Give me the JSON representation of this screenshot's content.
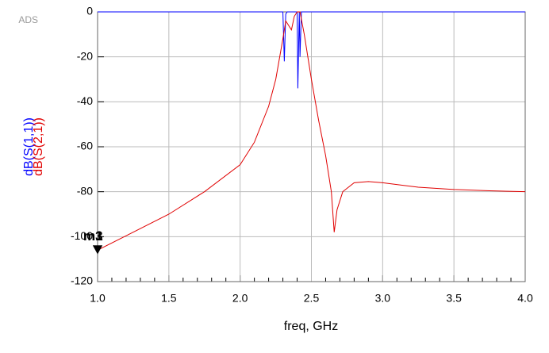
{
  "chart_data": {
    "type": "line",
    "logo": "ADS",
    "xlabel": "freq, GHz",
    "series": [
      {
        "name": "dB(S(1,1))",
        "color": "#0000ff",
        "x": [
          1.0,
          2.3,
          2.31,
          2.32,
          2.33,
          2.4,
          2.405,
          2.415,
          2.42,
          2.43,
          4.0
        ],
        "values": [
          0,
          0,
          -22,
          -1,
          0,
          0,
          -34,
          0,
          -20,
          0,
          0
        ]
      },
      {
        "name": "dB(S(2,1))",
        "color": "#e00000",
        "x": [
          1.0,
          1.25,
          1.5,
          1.75,
          2.0,
          2.1,
          2.2,
          2.25,
          2.3,
          2.32,
          2.34,
          2.36,
          2.38,
          2.4,
          2.42,
          2.45,
          2.5,
          2.55,
          2.6,
          2.64,
          2.66,
          2.68,
          2.72,
          2.8,
          2.9,
          3.0,
          3.25,
          3.5,
          3.75,
          4.0
        ],
        "values": [
          -106,
          -98,
          -90,
          -80,
          -68,
          -58,
          -42,
          -30,
          -12,
          -4,
          -6,
          -8,
          -2,
          0,
          0,
          -10,
          -30,
          -48,
          -64,
          -80,
          -98,
          -88,
          -80,
          -76,
          -75.5,
          -76,
          -78,
          -79,
          -79.6,
          -80
        ]
      }
    ],
    "markers": [
      {
        "label": "m1",
        "x": 1.0,
        "y": -106
      },
      {
        "label": "m3",
        "x": 1.0,
        "y": -106
      }
    ],
    "xlim": [
      1.0,
      4.0
    ],
    "xticks": [
      {
        "value": 1.0,
        "label": "1.0"
      },
      {
        "value": 1.5,
        "label": "1.5"
      },
      {
        "value": 2.0,
        "label": "2.0"
      },
      {
        "value": 2.5,
        "label": "2.5"
      },
      {
        "value": 3.0,
        "label": "3.0"
      },
      {
        "value": 3.5,
        "label": "3.5"
      },
      {
        "value": 4.0,
        "label": "4.0"
      }
    ],
    "ylim": [
      -120,
      0
    ],
    "yticks": [
      -120,
      -100,
      -80,
      -60,
      -40,
      -20,
      0
    ],
    "grid": true
  }
}
